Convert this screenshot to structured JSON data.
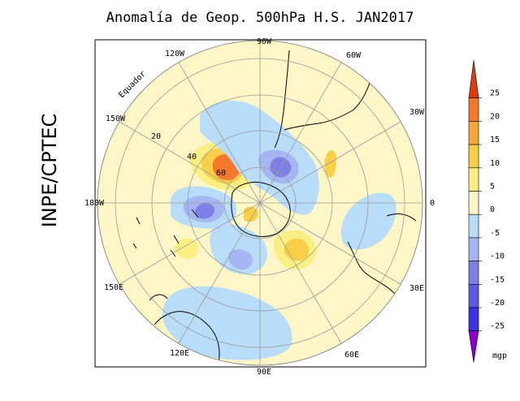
{
  "title": "Anomalía de Geop. 500hPa H.S. JAN2017",
  "side_label": "INPE/CPTEC",
  "map": {
    "longitude_labels": [
      "90W",
      "60W",
      "30W",
      "0",
      "30E",
      "60E",
      "90E",
      "120E",
      "150E",
      "180W",
      "150W",
      "120W"
    ],
    "latitude_labels": [
      "20",
      "40",
      "60"
    ],
    "equator_label": "Equador"
  },
  "colorbar": {
    "ticks": [
      "25",
      "20",
      "15",
      "10",
      "5",
      "0",
      "-5",
      "-10",
      "-15",
      "-20",
      "-25"
    ],
    "units": "mgp",
    "colors": [
      "#e03a12",
      "#f37a2c",
      "#f6a53c",
      "#f9cf4a",
      "#fbef84",
      "#fdf6c7",
      "#b9dcf8",
      "#a5b6f2",
      "#7f80e6",
      "#5e5ae4",
      "#3a33e6",
      "#8c00cf"
    ]
  },
  "colors": {
    "background": "#fdf6c7",
    "positive_weak": "#fbef84",
    "positive_mid": "#f9cf4a",
    "positive_strong": "#f37a2c",
    "negative_weak": "#b9dcf8",
    "negative_mid": "#a5b6f2",
    "negative_strong": "#7f80e6"
  }
}
